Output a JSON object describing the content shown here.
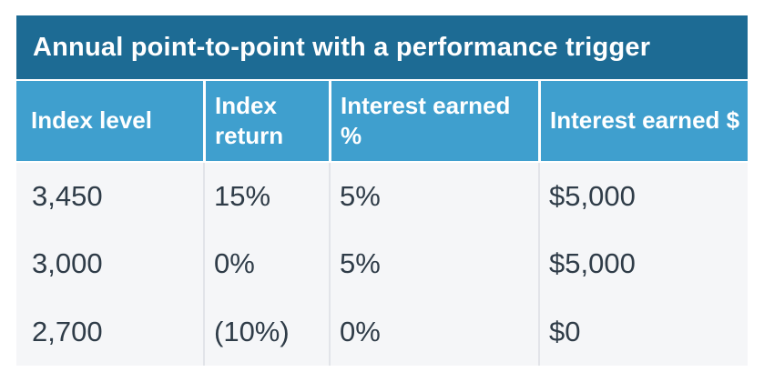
{
  "chart_data": {
    "type": "table",
    "title": "Annual point-to-point with a performance trigger",
    "columns": [
      "Index level",
      "Index return",
      "Interest earned %",
      "Interest earned $"
    ],
    "rows": [
      [
        "3,450",
        "15%",
        "5%",
        "$5,000"
      ],
      [
        "3,000",
        "0%",
        "5%",
        "$5,000"
      ],
      [
        "2,700",
        "(10%)",
        "0%",
        "$0"
      ]
    ]
  },
  "colors": {
    "title_bg": "#1d6b94",
    "header_bg": "#3f9fce",
    "header_text": "#ffffff",
    "body_bg": "#f5f6f8",
    "body_text": "#2f3c48",
    "divider": "#e2e4e9"
  }
}
